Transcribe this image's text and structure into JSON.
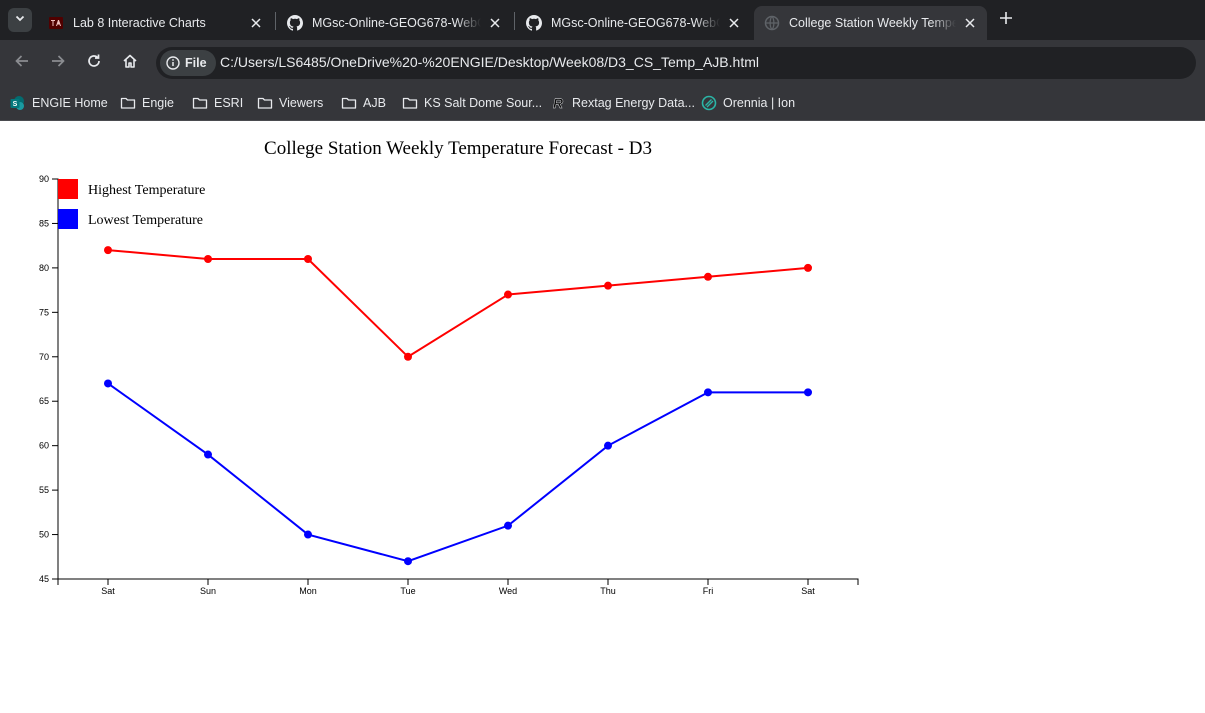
{
  "browser": {
    "tabs": [
      {
        "title": "Lab 8 Interactive Charts",
        "icon": "tamu-icon",
        "active": false
      },
      {
        "title": "MGsc-Online-GEOG678-WebGIS",
        "icon": "github-icon",
        "active": false
      },
      {
        "title": "MGsc-Online-GEOG678-WebGIS",
        "icon": "github-icon",
        "active": false
      },
      {
        "title": "College Station Weekly Temperature Forecast - D3",
        "icon": "globe-icon",
        "active": true
      }
    ],
    "address": {
      "scheme_label": "File",
      "url": "C:/Users/LS6485/OneDrive%20-%20ENGIE/Desktop/Week08/D3_CS_Temp_AJB.html"
    },
    "bookmarks": [
      {
        "label": "ENGIE Home",
        "icon": "sharepoint-icon"
      },
      {
        "label": "Engie",
        "icon": "folder-icon"
      },
      {
        "label": "ESRI",
        "icon": "folder-icon"
      },
      {
        "label": "Viewers",
        "icon": "folder-icon"
      },
      {
        "label": "AJB",
        "icon": "folder-icon"
      },
      {
        "label": "KS Salt Dome Sour...",
        "icon": "folder-icon"
      },
      {
        "label": "Rextag Energy Data...",
        "icon": "rextag-icon"
      },
      {
        "label": "Orennia | Ion",
        "icon": "orennia-icon"
      }
    ]
  },
  "colors": {
    "high": "#ff0000",
    "low": "#0000ff"
  },
  "chart_data": {
    "type": "line",
    "title": "College Station Weekly Temperature Forecast - D3",
    "xlabel": "",
    "ylabel": "",
    "categories": [
      "Sat",
      "Sun",
      "Mon",
      "Tue",
      "Wed",
      "Thu",
      "Fri",
      "Sat"
    ],
    "ylim": [
      45,
      90
    ],
    "yticks": [
      45,
      50,
      55,
      60,
      65,
      70,
      75,
      80,
      85,
      90
    ],
    "legend_position": "top-left",
    "grid": false,
    "series": [
      {
        "name": "Highest Temperature",
        "color": "#ff0000",
        "values": [
          82,
          81,
          81,
          70,
          77,
          78,
          79,
          80
        ]
      },
      {
        "name": "Lowest Temperature",
        "color": "#0000ff",
        "values": [
          67,
          59,
          50,
          47,
          51,
          60,
          66,
          66
        ]
      }
    ]
  }
}
